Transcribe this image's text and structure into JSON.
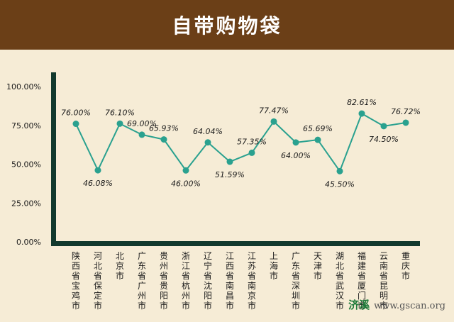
{
  "chart_data": {
    "type": "line",
    "title": "自带购物袋",
    "categories": [
      "陕西省宝鸡市",
      "河北省保定市",
      "北京市",
      "广东省广州市",
      "贵州省贵阳市",
      "浙江省杭州市",
      "辽宁省沈阳市",
      "江西省南昌市",
      "江苏省南京市",
      "上海市",
      "广东省深圳市",
      "天津市",
      "湖北省武汉市",
      "福建省厦门市",
      "云南省昆明市",
      "重庆市"
    ],
    "values": [
      76.0,
      46.08,
      76.1,
      69.0,
      65.93,
      46.0,
      64.04,
      51.59,
      57.35,
      77.47,
      64.0,
      65.69,
      45.5,
      82.61,
      74.5,
      76.72
    ],
    "labels": [
      "76.00%",
      "46.08%",
      "76.10%",
      "69.00%",
      "65.93%",
      "46.00%",
      "64.04%",
      "51.59%",
      "57.35%",
      "77.47%",
      "64.00%",
      "65.69%",
      "45.50%",
      "82.61%",
      "74.50%",
      "76.72%"
    ],
    "yticks": [
      "100.00%",
      "75.00%",
      "50.00%",
      "25.00%",
      "0.00%"
    ],
    "ytick_values": [
      100,
      75,
      50,
      25,
      0
    ],
    "ylim": [
      0,
      100
    ],
    "xlabel": "",
    "ylabel": "",
    "grid": false,
    "line_color": "#2aa18f",
    "axis_color": "#12392d"
  },
  "watermark": {
    "brand": "济溪",
    "url": "www.gscan.org"
  }
}
